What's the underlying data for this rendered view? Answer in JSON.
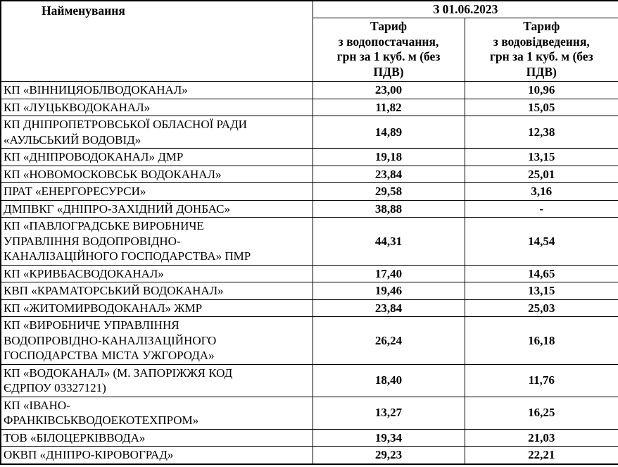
{
  "colors": {
    "border": "#000000",
    "text": "#000000",
    "background": "#ffffff"
  },
  "table": {
    "name_header": "Найменування",
    "date_header": "З 01.06.2023",
    "supply_header": "Тариф\nз водопостачання,\nгрн за 1 куб. м (без\nПДВ)",
    "drainage_header": "Тариф\nз водовідведення,\nгрн за 1 куб. м (без\nПДВ)",
    "rows": [
      {
        "name": "КП «ВІННИЦЯОБЛВОДОКАНАЛ»",
        "supply": "23,00",
        "drainage": "10,96"
      },
      {
        "name": "КП «ЛУЦЬКВОДОКАНАЛ»",
        "supply": "11,82",
        "drainage": "15,05"
      },
      {
        "name": "КП ДНІПРОПЕТРОВСЬКОЇ ОБЛАСНОЇ РАДИ\n«АУЛЬСЬКИЙ ВОДОВІД»",
        "supply": "14,89",
        "drainage": "12,38"
      },
      {
        "name": "КП «ДНІПРОВОДОКАНАЛ» ДМР",
        "supply": "19,18",
        "drainage": "13,15"
      },
      {
        "name": "КП «НОВОМОСКОВСЬК ВОДОКАНАЛ»",
        "supply": "23,84",
        "drainage": "25,01"
      },
      {
        "name": "ПРАТ «ЕНЕРГОРЕСУРСИ»",
        "supply": "29,58",
        "drainage": "3,16"
      },
      {
        "name": "ДМПВКГ «ДНІПРО-ЗАХІДНИЙ ДОНБАС»",
        "supply": "38,88",
        "drainage": "-"
      },
      {
        "name": "КП «ПАВЛОГРАДСЬКЕ ВИРОБНИЧЕ\nУПРАВЛІННЯ ВОДОПРОВІДНО-\nКАНАЛІЗАЦІЙНОГО ГОСПОДАРСТВА» ПМР",
        "supply": "44,31",
        "drainage": "14,54"
      },
      {
        "name": "КП «КРИВБАСВОДОКАНАЛ»",
        "supply": "17,40",
        "drainage": "14,65"
      },
      {
        "name": "КВП «КРАМАТОРСЬКИЙ ВОДОКАНАЛ»",
        "supply": "19,46",
        "drainage": "13,15"
      },
      {
        "name": "КП «ЖИТОМИРВОДОКАНАЛ» ЖМР",
        "supply": "23,84",
        "drainage": "25,03"
      },
      {
        "name": "КП «ВИРОБНИЧЕ УПРАВЛІННЯ\nВОДОПРОВІДНО-КАНАЛІЗАЦІЙНОГО\nГОСПОДАРСТВА МІСТА УЖГОРОДА»",
        "supply": "26,24",
        "drainage": "16,18"
      },
      {
        "name": "КП «ВОДОКАНАЛ» (М. ЗАПОРІЖЖЯ КОД\nЄДРПОУ 03327121)",
        "supply": "18,40",
        "drainage": "11,76"
      },
      {
        "name": "КП «ІВАНО-\nФРАНКІВСЬКВОДОЕКОТЕХПРОМ»",
        "supply": "13,27",
        "drainage": "16,25"
      },
      {
        "name": "ТОВ «БІЛОЦЕРКІВВОДА»",
        "supply": "19,34",
        "drainage": "21,03"
      },
      {
        "name": "ОКВП «ДНІПРО-КІРОВОГРАД»",
        "supply": "29,23",
        "drainage": "22,21"
      }
    ]
  }
}
